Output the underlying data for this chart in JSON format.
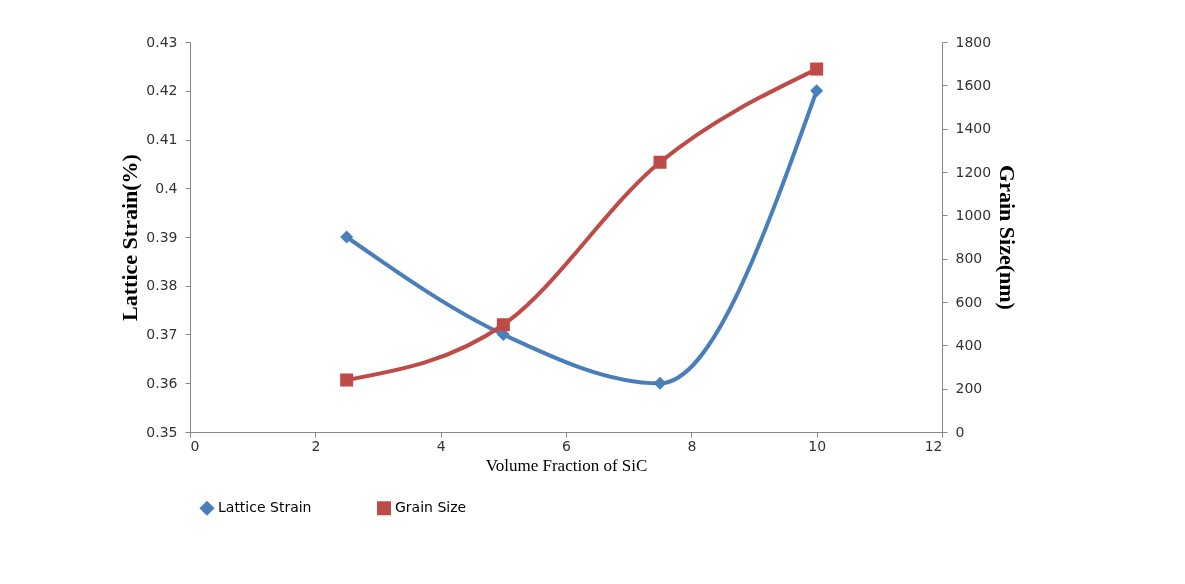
{
  "chart_data": {
    "type": "line",
    "xlabel": "Volume Fraction of SiC",
    "ylabel": "Lattice Strain(%)",
    "y2label": "Grain Size(nm)",
    "x": [
      2.5,
      5,
      7.5,
      10
    ],
    "series": [
      {
        "name": "Lattice Strain",
        "color": "#4a7ebb",
        "marker": "diamond",
        "values": [
          0.39,
          0.37,
          0.36,
          0.42
        ]
      },
      {
        "name": "Grain Size",
        "color": "#be4b48",
        "marker": "square",
        "axis": "y2",
        "values": [
          240,
          495,
          1245,
          1675
        ]
      }
    ],
    "xlim": [
      0,
      12
    ],
    "xticks": [
      0,
      2,
      4,
      6,
      8,
      10,
      12
    ],
    "ylim": [
      0.35,
      0.43
    ],
    "yticks": [
      0.35,
      0.36,
      0.37,
      0.38,
      0.39,
      0.4,
      0.41,
      0.42,
      0.43
    ],
    "y2lim": [
      0,
      1800
    ],
    "y2ticks": [
      0,
      200,
      400,
      600,
      800,
      1000,
      1200,
      1400,
      1600,
      1800
    ],
    "grid": false,
    "legend": "bottom"
  }
}
